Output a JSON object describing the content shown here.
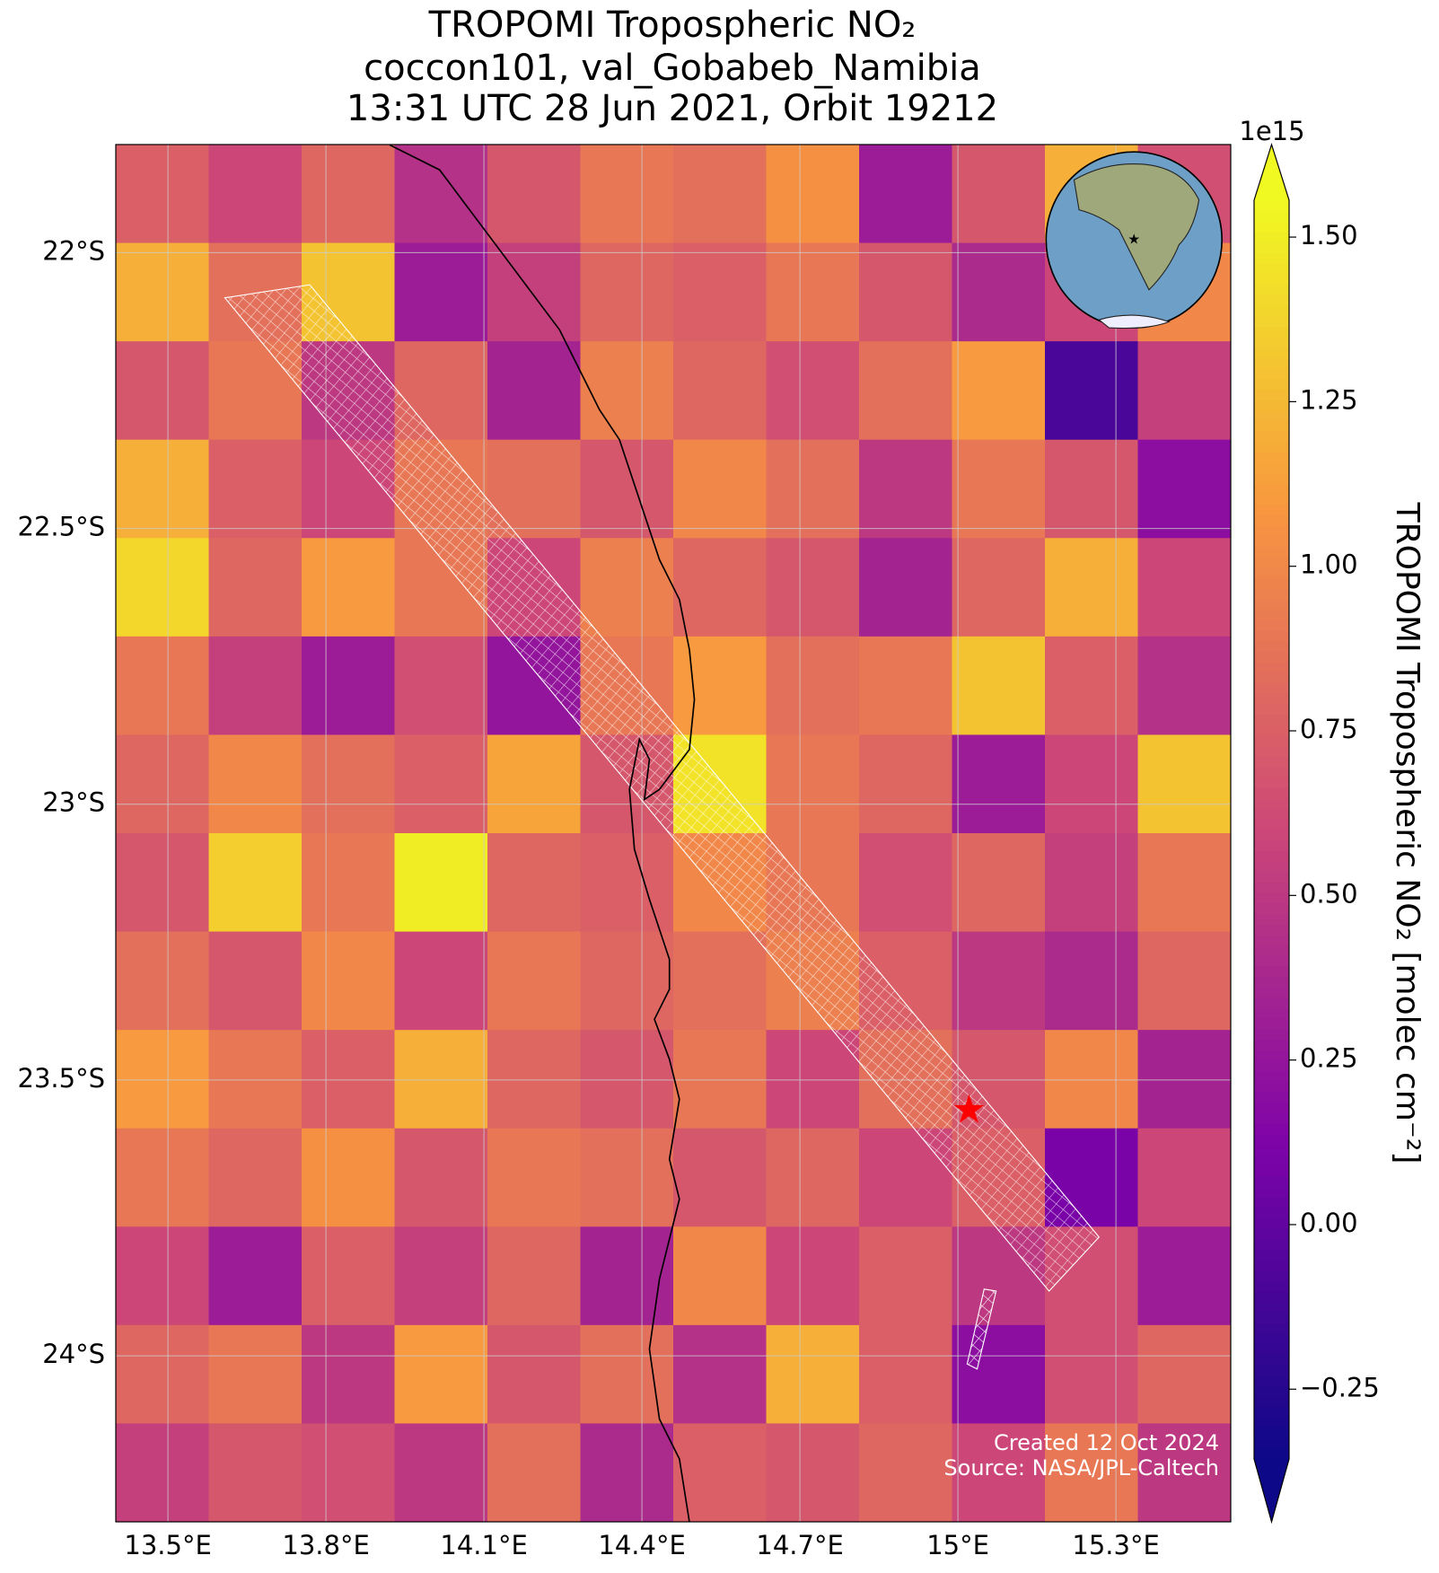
{
  "chart_data": {
    "type": "map",
    "title": [
      "TROPOMI Tropospheric NO₂",
      "coccon101, val_Gobabeb_Namibia",
      "13:31 UTC 28 Jun 2021, Orbit 19212"
    ],
    "xlim": [
      13.401,
      15.518
    ],
    "ylim": [
      -24.301,
      -21.804
    ],
    "xticks": [
      {
        "value": 13.5,
        "label": "13.5°E"
      },
      {
        "value": 13.8,
        "label": "13.8°E"
      },
      {
        "value": 14.1,
        "label": "14.1°E"
      },
      {
        "value": 14.4,
        "label": "14.4°E"
      },
      {
        "value": 14.7,
        "label": "14.7°E"
      },
      {
        "value": 15.0,
        "label": "15°E"
      },
      {
        "value": 15.3,
        "label": "15.3°E"
      }
    ],
    "yticks": [
      {
        "value": -22,
        "label": "22°S"
      },
      {
        "value": -22.5,
        "label": "22.5°S"
      },
      {
        "value": -23,
        "label": "23°S"
      },
      {
        "value": -23.5,
        "label": "23.5°S"
      },
      {
        "value": -24,
        "label": "24°S"
      }
    ],
    "grid": true,
    "colormap": "plasma",
    "colorbar_lim": [
      -0.356,
      1.556
    ],
    "colorbar_ticks": [
      {
        "value": -0.25,
        "label": "−0.25"
      },
      {
        "value": 0,
        "label": "0.00"
      },
      0.25,
      {
        "value": 0.5,
        "label": "0.50"
      },
      0.75,
      {
        "value": 1,
        "label": "1.00"
      },
      1.25,
      {
        "value": 1.5,
        "label": "1.50"
      }
    ],
    "colorbar_multiplier": "1e15",
    "colorbar_label": "TROPOMI Tropospheric NO₂ [molec cm⁻²]",
    "station": {
      "lon": 15.021,
      "lat": -23.558,
      "color": "#ff0000"
    },
    "no2_grid": [
      [
        0.75,
        0.6,
        0.8,
        0.45,
        0.7,
        0.9,
        0.85,
        1.05,
        0.3,
        0.7,
        1.2,
        0.65
      ],
      [
        1.2,
        0.85,
        1.3,
        0.3,
        0.55,
        0.8,
        0.75,
        0.9,
        0.7,
        0.4,
        0.6,
        1.0
      ],
      [
        0.7,
        0.9,
        0.5,
        0.8,
        0.35,
        0.95,
        0.8,
        0.65,
        0.85,
        1.1,
        -0.1,
        0.55
      ],
      [
        1.2,
        0.75,
        0.6,
        0.9,
        0.85,
        0.7,
        1.0,
        0.85,
        0.5,
        0.9,
        0.7,
        0.2
      ],
      [
        1.4,
        0.8,
        1.1,
        0.9,
        0.6,
        0.95,
        0.8,
        0.7,
        0.35,
        0.8,
        1.2,
        0.6
      ],
      [
        0.9,
        0.55,
        0.3,
        0.65,
        0.25,
        0.9,
        1.1,
        0.85,
        0.9,
        1.3,
        0.75,
        0.45
      ],
      [
        0.8,
        1.0,
        0.85,
        0.75,
        1.15,
        0.7,
        1.45,
        0.9,
        0.8,
        0.3,
        0.6,
        1.3
      ],
      [
        0.7,
        1.35,
        0.9,
        1.5,
        0.8,
        0.75,
        1.0,
        0.9,
        0.65,
        0.8,
        0.55,
        0.9
      ],
      [
        0.85,
        0.7,
        1.0,
        0.6,
        0.9,
        0.8,
        0.85,
        0.95,
        0.75,
        0.5,
        0.4,
        0.8
      ],
      [
        1.1,
        0.9,
        0.75,
        1.2,
        0.8,
        0.7,
        0.9,
        0.6,
        0.85,
        0.7,
        1.0,
        0.35
      ],
      [
        0.9,
        0.8,
        1.05,
        0.7,
        0.9,
        0.85,
        0.7,
        0.8,
        0.6,
        0.75,
        0.1,
        0.6
      ],
      [
        0.6,
        0.3,
        0.75,
        0.55,
        0.8,
        0.35,
        1.0,
        0.6,
        0.75,
        0.5,
        0.65,
        0.3
      ],
      [
        0.8,
        0.9,
        0.5,
        1.1,
        0.7,
        0.85,
        0.45,
        1.2,
        0.75,
        0.2,
        0.65,
        0.8
      ],
      [
        0.55,
        0.7,
        0.65,
        0.5,
        0.85,
        0.4,
        0.75,
        0.7,
        0.8,
        0.6,
        0.9,
        0.5
      ]
    ],
    "footer": [
      "Created 12 Oct 2024",
      "Source: NASA/JPL-Caltech"
    ]
  }
}
